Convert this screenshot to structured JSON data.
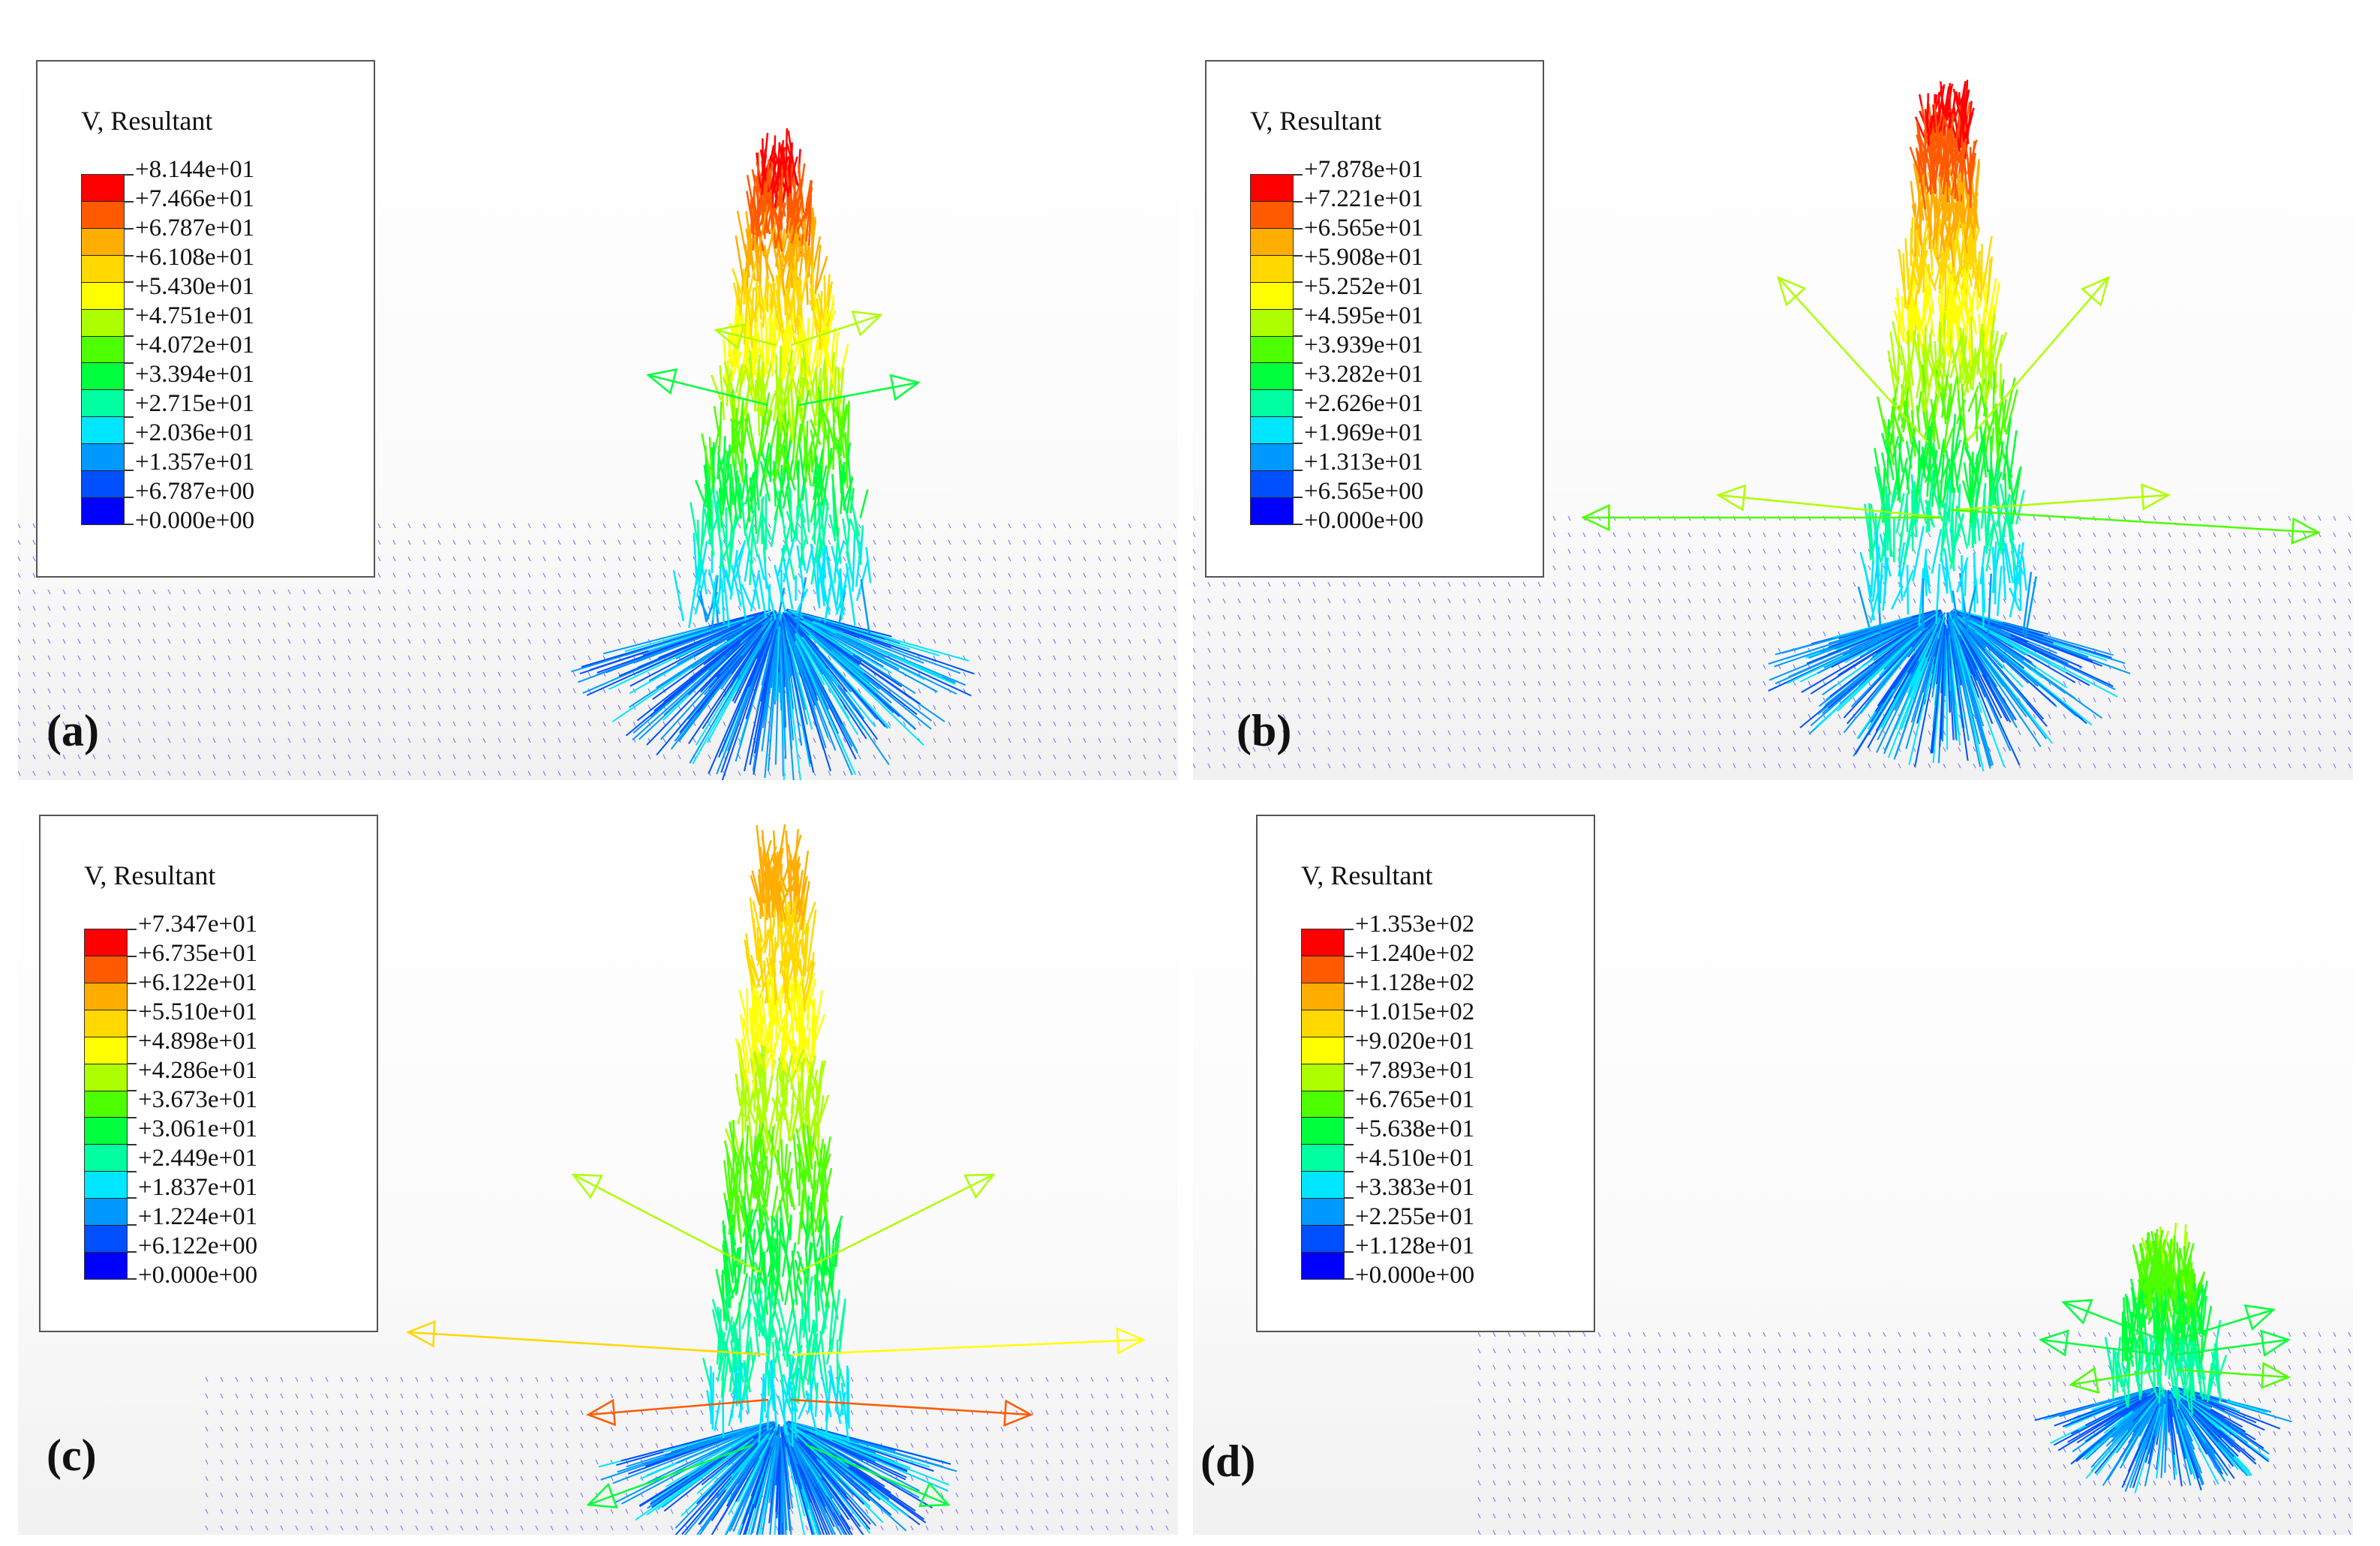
{
  "figure": {
    "panels": [
      {
        "id": "a",
        "label": "(a)",
        "legend": {
          "title": "V, Resultant",
          "values": [
            "+8.144e+01",
            "+7.466e+01",
            "+6.787e+01",
            "+6.108e+01",
            "+5.430e+01",
            "+4.751e+01",
            "+4.072e+01",
            "+3.394e+01",
            "+2.715e+01",
            "+2.036e+01",
            "+1.357e+01",
            "+6.787e+00",
            "+0.000e+00"
          ]
        }
      },
      {
        "id": "b",
        "label": "(b)",
        "legend": {
          "title": "V, Resultant",
          "values": [
            "+7.878e+01",
            "+7.221e+01",
            "+6.565e+01",
            "+5.908e+01",
            "+5.252e+01",
            "+4.595e+01",
            "+3.939e+01",
            "+3.282e+01",
            "+2.626e+01",
            "+1.969e+01",
            "+1.313e+01",
            "+6.565e+00",
            "+0.000e+00"
          ]
        }
      },
      {
        "id": "c",
        "label": "(c)",
        "legend": {
          "title": "V, Resultant",
          "values": [
            "+7.347e+01",
            "+6.735e+01",
            "+6.122e+01",
            "+5.510e+01",
            "+4.898e+01",
            "+4.286e+01",
            "+3.673e+01",
            "+3.061e+01",
            "+2.449e+01",
            "+1.837e+01",
            "+1.224e+01",
            "+6.122e+00",
            "+0.000e+00"
          ]
        }
      },
      {
        "id": "d",
        "label": "(d)",
        "legend": {
          "title": "V, Resultant",
          "values": [
            "+1.353e+02",
            "+1.240e+02",
            "+1.128e+02",
            "+1.015e+02",
            "+9.020e+01",
            "+7.893e+01",
            "+6.765e+01",
            "+5.638e+01",
            "+4.510e+01",
            "+3.383e+01",
            "+2.255e+01",
            "+1.128e+01",
            "+0.000e+00"
          ]
        }
      }
    ],
    "colormap": [
      "#ff0000",
      "#ff5a00",
      "#ffad00",
      "#ffd800",
      "#ffff00",
      "#adff00",
      "#4dff00",
      "#00ff3c",
      "#00ffa0",
      "#00e6ff",
      "#0099ff",
      "#0050ff",
      "#0000ff"
    ]
  }
}
